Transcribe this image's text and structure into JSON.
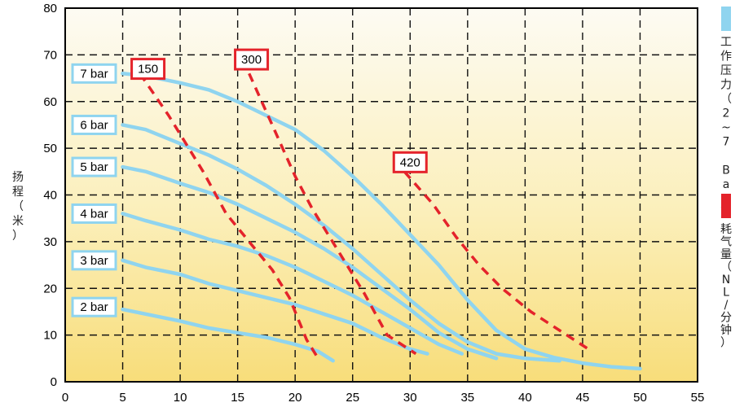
{
  "chart_data": {
    "type": "line",
    "xlim": [
      0,
      55
    ],
    "ylim": [
      0,
      80
    ],
    "x_ticks": [
      "0",
      "5",
      "10",
      "15",
      "20",
      "25",
      "30",
      "35",
      "40",
      "45",
      "50",
      "55"
    ],
    "y_ticks": [
      "0",
      "10",
      "20",
      "30",
      "40",
      "50",
      "60",
      "70",
      "80"
    ],
    "grid": true,
    "ylabel": "扬程（米）",
    "legend": [
      {
        "label": "工作压力（2~7 Bar）",
        "color": "#8fd4ef"
      },
      {
        "label": "耗气量（NL/分钟）",
        "color": "#e4232b"
      }
    ],
    "pressure_series": [
      {
        "name": "7 bar",
        "color": "#8fd4ef",
        "points": [
          [
            5,
            66
          ],
          [
            7,
            65.5
          ],
          [
            10,
            64
          ],
          [
            12.5,
            62.5
          ],
          [
            15,
            60
          ],
          [
            17.5,
            57
          ],
          [
            20,
            54
          ],
          [
            22.5,
            49.5
          ],
          [
            25,
            44
          ],
          [
            27.5,
            38
          ],
          [
            30,
            31.5
          ],
          [
            32.5,
            25
          ],
          [
            35,
            17.5
          ],
          [
            37.5,
            11
          ],
          [
            40,
            7
          ],
          [
            42.5,
            5.2
          ],
          [
            45,
            4
          ],
          [
            47.5,
            3.2
          ],
          [
            50,
            2.8
          ]
        ]
      },
      {
        "name": "6 bar",
        "color": "#8fd4ef",
        "points": [
          [
            5,
            55
          ],
          [
            7,
            54
          ],
          [
            10,
            51
          ],
          [
            12.5,
            48.5
          ],
          [
            15,
            45.5
          ],
          [
            17.5,
            42
          ],
          [
            20,
            38
          ],
          [
            22.5,
            33.5
          ],
          [
            25,
            28.5
          ],
          [
            27.5,
            23
          ],
          [
            30,
            17.5
          ],
          [
            32.5,
            12.5
          ],
          [
            35,
            8.5
          ],
          [
            37.5,
            6
          ],
          [
            40,
            5
          ],
          [
            43,
            4.5
          ]
        ]
      },
      {
        "name": "5 bar",
        "color": "#8fd4ef",
        "points": [
          [
            5,
            46
          ],
          [
            7,
            45
          ],
          [
            10,
            42.5
          ],
          [
            12.5,
            40.5
          ],
          [
            15,
            38
          ],
          [
            17.5,
            35
          ],
          [
            20,
            32
          ],
          [
            22.5,
            28.5
          ],
          [
            25,
            24.5
          ],
          [
            27.5,
            20
          ],
          [
            30,
            15.5
          ],
          [
            32.5,
            10.5
          ],
          [
            35,
            7
          ],
          [
            37.5,
            5
          ]
        ]
      },
      {
        "name": "4 bar",
        "color": "#8fd4ef",
        "points": [
          [
            5,
            36
          ],
          [
            7,
            34.5
          ],
          [
            10,
            32.5
          ],
          [
            12.5,
            30.5
          ],
          [
            15,
            29
          ],
          [
            17.5,
            27
          ],
          [
            20,
            24.5
          ],
          [
            22.5,
            21.5
          ],
          [
            25,
            18.5
          ],
          [
            27.5,
            15
          ],
          [
            30,
            11.5
          ],
          [
            32.5,
            8
          ],
          [
            34.5,
            6
          ]
        ]
      },
      {
        "name": "3 bar",
        "color": "#8fd4ef",
        "points": [
          [
            5,
            26
          ],
          [
            7,
            24.5
          ],
          [
            10,
            23
          ],
          [
            12.5,
            21
          ],
          [
            15,
            19.5
          ],
          [
            17.5,
            18
          ],
          [
            20,
            16.5
          ],
          [
            22.5,
            14.5
          ],
          [
            25,
            12.5
          ],
          [
            27.5,
            9.5
          ],
          [
            30,
            7
          ],
          [
            31.5,
            6
          ]
        ]
      },
      {
        "name": "2 bar",
        "color": "#8fd4ef",
        "points": [
          [
            5,
            15.5
          ],
          [
            7,
            14.5
          ],
          [
            10,
            13
          ],
          [
            12.5,
            11.5
          ],
          [
            15,
            10.5
          ],
          [
            17.5,
            9.5
          ],
          [
            20,
            8
          ],
          [
            22,
            6.5
          ],
          [
            23.3,
            4.5
          ]
        ]
      }
    ],
    "air_series": [
      {
        "name": "150",
        "color": "#e4232b",
        "points": [
          [
            6.5,
            66
          ],
          [
            9,
            57
          ],
          [
            12,
            45
          ],
          [
            14,
            36
          ],
          [
            16,
            30
          ],
          [
            18,
            24
          ],
          [
            19.5,
            18
          ],
          [
            21,
            9
          ],
          [
            22,
            5
          ]
        ]
      },
      {
        "name": "300",
        "color": "#e4232b",
        "points": [
          [
            16,
            66
          ],
          [
            18,
            55
          ],
          [
            20,
            44
          ],
          [
            21.5,
            37
          ],
          [
            23,
            31
          ],
          [
            24.5,
            25
          ],
          [
            26,
            19
          ],
          [
            28,
            10
          ],
          [
            30.5,
            6
          ]
        ]
      },
      {
        "name": "420",
        "color": "#e4232b",
        "points": [
          [
            29.5,
            45
          ],
          [
            32,
            38
          ],
          [
            34,
            31
          ],
          [
            36,
            25
          ],
          [
            38,
            20
          ],
          [
            40.5,
            15
          ],
          [
            43,
            11
          ],
          [
            45.5,
            7
          ]
        ]
      }
    ],
    "pressure_tags": [
      {
        "label": "7 bar",
        "y": 66
      },
      {
        "label": "6 bar",
        "y": 55
      },
      {
        "label": "5 bar",
        "y": 46
      },
      {
        "label": "4 bar",
        "y": 36
      },
      {
        "label": "3 bar",
        "y": 26
      },
      {
        "label": "2 bar",
        "y": 16
      }
    ],
    "air_tags": [
      {
        "label": "150",
        "x": 7.2,
        "y": 67
      },
      {
        "label": "300",
        "x": 16.2,
        "y": 69
      },
      {
        "label": "420",
        "x": 30,
        "y": 47
      }
    ]
  }
}
